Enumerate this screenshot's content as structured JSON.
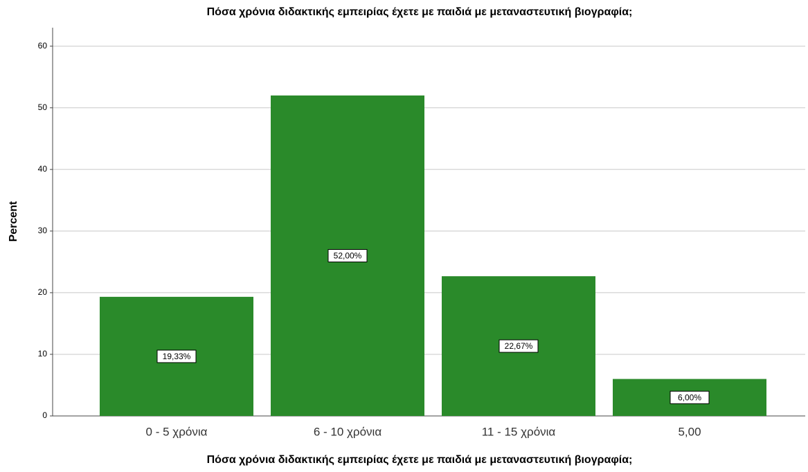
{
  "chart_data": {
    "type": "bar",
    "title": "Πόσα χρόνια διδακτικής εμπειρίας έχετε με παιδιά με μεταναστευτική βιογραφία;",
    "x_label": "Πόσα χρόνια διδακτικής εμπειρίας έχετε με παιδιά με μεταναστευτική βιογραφία;",
    "y_label": "Percent",
    "categories": [
      "0 - 5 χρόνια",
      "6 - 10 χρόνια",
      "11 - 15 χρόνια",
      "5,00"
    ],
    "values": [
      19.33,
      52,
      22.67,
      6
    ],
    "value_labels": [
      "19,33%",
      "52,00%",
      "22,67%",
      "6,00%"
    ],
    "color": "#2a8a2a",
    "ylim": [
      0,
      63
    ],
    "yticks": [
      0,
      10,
      20,
      30,
      40,
      50,
      60
    ],
    "grid": true
  }
}
